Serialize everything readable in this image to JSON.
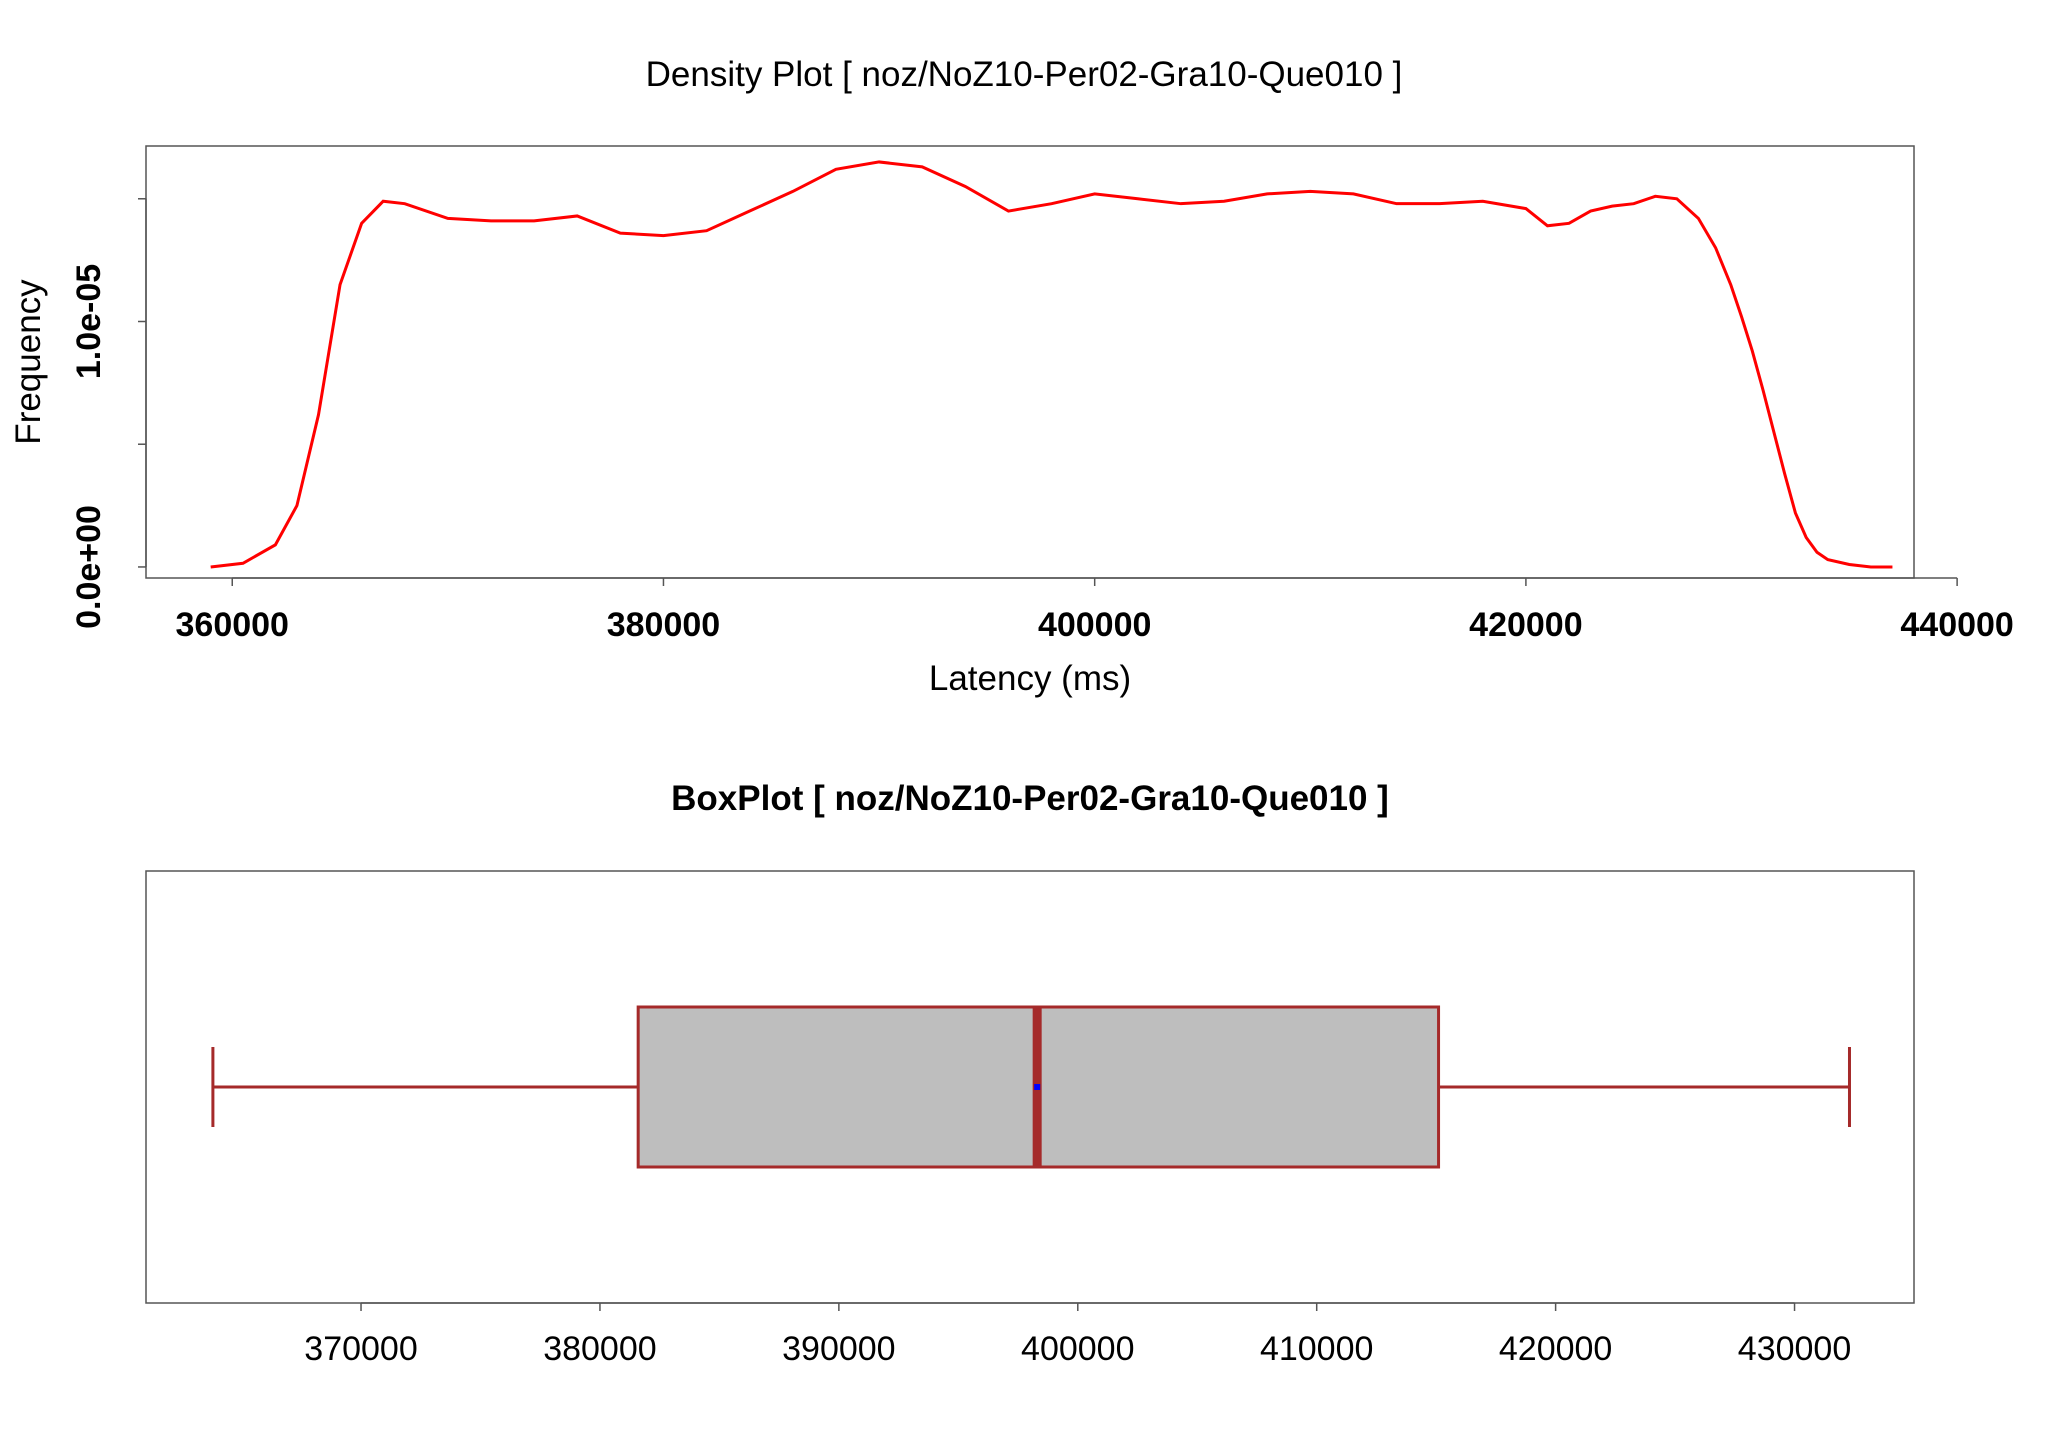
{
  "chart_data": [
    {
      "type": "line",
      "title": "Density Plot [ noz/NoZ10-Per02-Gra10-Que010 ]",
      "xlabel": "Latency (ms)",
      "ylabel": "Frequency",
      "xlim": [
        356000,
        438000
      ],
      "ylim": [
        -4.5e-07,
        1.715e-05
      ],
      "x_ticks": [
        360000,
        380000,
        400000,
        420000,
        440000
      ],
      "x_tick_labels": [
        "360000",
        "380000",
        "400000",
        "420000",
        "440000"
      ],
      "y_ticks": [
        0,
        5e-06,
        1e-05,
        1.5e-05
      ],
      "y_tick_labels": [
        "0.0e+00",
        "",
        "1.0e-05",
        ""
      ],
      "grid": false,
      "series": [
        {
          "color": "#ff0000",
          "x": [
            359000,
            360500,
            362000,
            363000,
            364000,
            365000,
            366000,
            367000,
            368000,
            370000,
            372000,
            374000,
            376000,
            378000,
            380000,
            382000,
            384000,
            386000,
            388000,
            390000,
            392000,
            394000,
            396000,
            398000,
            400000,
            402000,
            404000,
            406000,
            408000,
            410000,
            412000,
            414000,
            416000,
            418000,
            420000,
            421000,
            422000,
            423000,
            424000,
            425000,
            426000,
            427000,
            428000,
            428800,
            429500,
            430000,
            430500,
            431000,
            431500,
            432000,
            432500,
            433000,
            433500,
            434000,
            435000,
            436000,
            437000
          ],
          "y": [
            0.0,
            1.5e-07,
            9e-07,
            2.5e-06,
            6.2e-06,
            1.15e-05,
            1.4e-05,
            1.49e-05,
            1.48e-05,
            1.42e-05,
            1.41e-05,
            1.41e-05,
            1.43e-05,
            1.36e-05,
            1.35e-05,
            1.37e-05,
            1.45e-05,
            1.53e-05,
            1.62e-05,
            1.65e-05,
            1.63e-05,
            1.55e-05,
            1.45e-05,
            1.48e-05,
            1.52e-05,
            1.5e-05,
            1.48e-05,
            1.49e-05,
            1.52e-05,
            1.53e-05,
            1.52e-05,
            1.48e-05,
            1.48e-05,
            1.49e-05,
            1.46e-05,
            1.39e-05,
            1.4e-05,
            1.45e-05,
            1.47e-05,
            1.48e-05,
            1.51e-05,
            1.5e-05,
            1.42e-05,
            1.3e-05,
            1.15e-05,
            1.02e-05,
            8.8e-06,
            7.2e-06,
            5.5e-06,
            3.8e-06,
            2.2e-06,
            1.2e-06,
            6e-07,
            3e-07,
            1e-07,
            0.0,
            0.0
          ]
        }
      ]
    },
    {
      "type": "box",
      "title": "BoxPlot [ noz/NoZ10-Per02-Gra10-Que010 ]",
      "xlim": [
        361000,
        435000
      ],
      "x_ticks": [
        370000,
        380000,
        390000,
        400000,
        410000,
        420000,
        430000
      ],
      "x_tick_labels": [
        "370000",
        "380000",
        "390000",
        "400000",
        "410000",
        "420000",
        "430000"
      ],
      "whisker_low": 363800,
      "q1": 381600,
      "median": 398300,
      "mean": 398300,
      "q3": 415100,
      "whisker_high": 432300,
      "box_fill": "#bebebe",
      "line_color": "#a52a2a",
      "mean_color": "#0000ff"
    }
  ]
}
